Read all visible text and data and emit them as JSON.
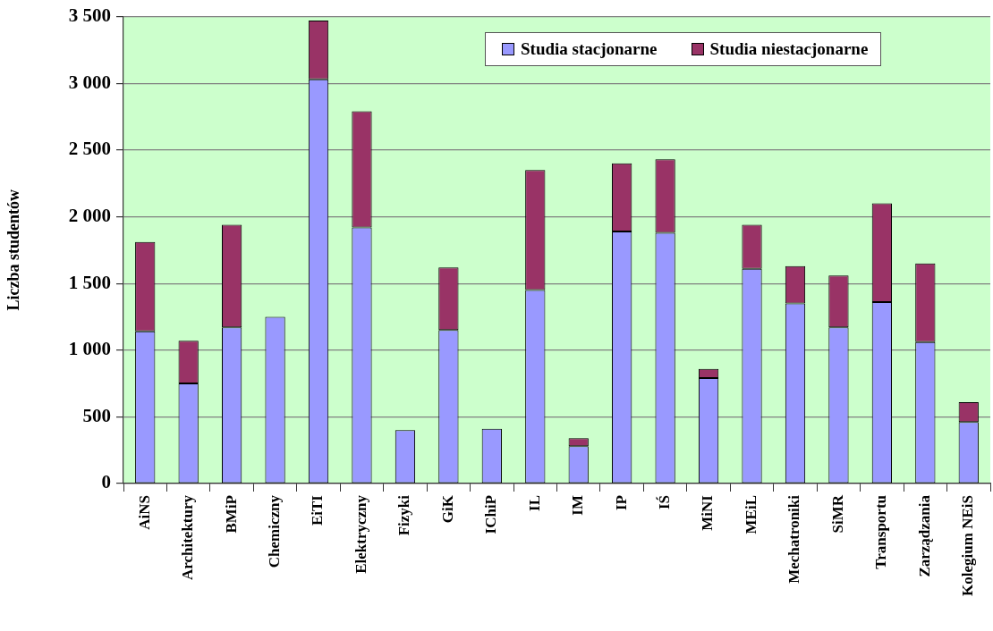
{
  "chart_data": {
    "type": "bar",
    "stacked": true,
    "ylabel": "Liczba studentów",
    "categories": [
      "AiNS",
      "Architektury",
      "BMiP",
      "Chemiczny",
      "EiTI",
      "Elektryczny",
      "Fizyki",
      "GiK",
      "IChiP",
      "IL",
      "IM",
      "IP",
      "IŚ",
      "MiNI",
      "MEiL",
      "Mechatroniki",
      "SiMR",
      "Transportu",
      "Zarządzania",
      "Kolegium NEiS"
    ],
    "series": [
      {
        "name": "Studia stacjonarne",
        "color": "#9999ff",
        "values": [
          1140,
          750,
          1170,
          1250,
          3030,
          1920,
          400,
          1150,
          410,
          1450,
          280,
          1890,
          1880,
          790,
          1610,
          1350,
          1170,
          1360,
          1060,
          460
        ]
      },
      {
        "name": "Studia niestacjonarne",
        "color": "#993366",
        "values": [
          670,
          320,
          770,
          0,
          440,
          870,
          0,
          470,
          0,
          900,
          60,
          510,
          550,
          70,
          330,
          280,
          390,
          740,
          590,
          150
        ]
      }
    ],
    "ylim": [
      0,
      3500
    ],
    "yticks": [
      0,
      500,
      {
        "value": 1000,
        "label": "1 000"
      },
      {
        "value": 1500,
        "label": "1 500"
      },
      {
        "value": 2000,
        "label": "2 000"
      },
      {
        "value": 2500,
        "label": "2 500"
      },
      {
        "value": 3000,
        "label": "3 000"
      },
      {
        "value": 3500,
        "label": "3 500"
      }
    ],
    "grid": "y",
    "legend": "top right"
  }
}
